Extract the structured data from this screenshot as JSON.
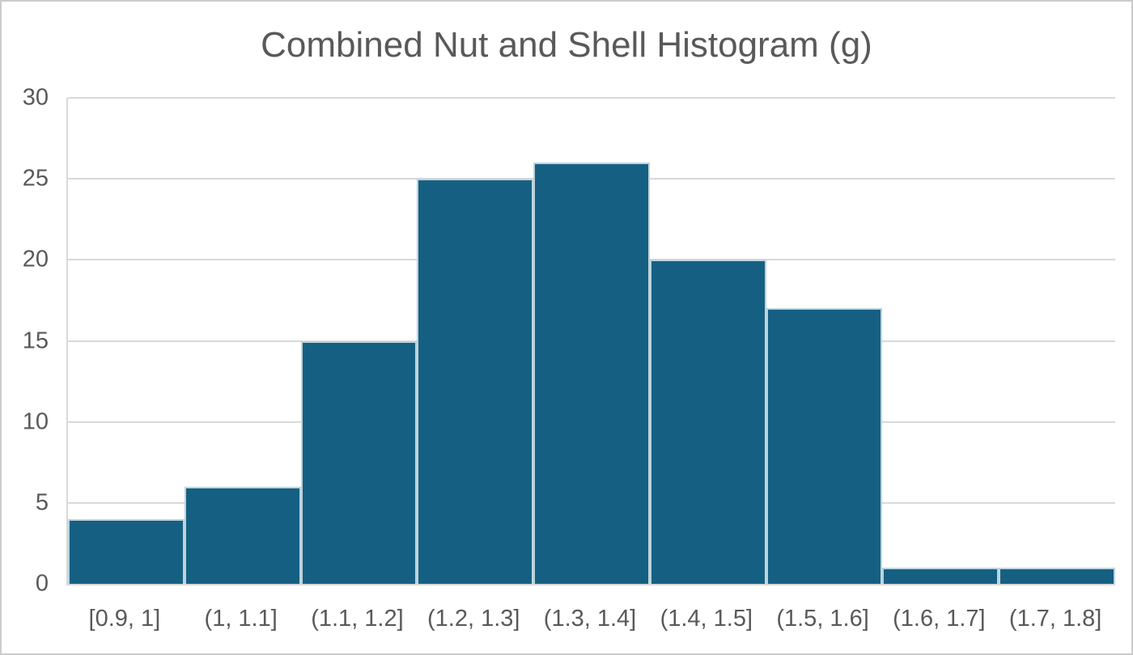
{
  "chart_data": {
    "type": "bar",
    "subtype": "histogram",
    "title": "Combined Nut and Shell Histogram (g)",
    "categories": [
      "[0.9, 1]",
      "(1, 1.1]",
      "(1.1, 1.2]",
      "(1.2, 1.3]",
      "(1.3, 1.4]",
      "(1.4, 1.5]",
      "(1.5, 1.6]",
      "(1.6, 1.7]",
      "(1.7, 1.8]"
    ],
    "values": [
      4,
      6,
      15,
      25,
      26,
      20,
      17,
      1,
      1
    ],
    "xlabel": "",
    "ylabel": "",
    "ylim": [
      0,
      30
    ],
    "yticks": [
      0,
      5,
      10,
      15,
      20,
      25,
      30
    ],
    "grid": true,
    "legend_position": "none",
    "colors": {
      "bar_fill": "#156082",
      "gridline": "#d9d9d9",
      "axis_line": "#d9d9d9",
      "text": "#595959",
      "frame_border": "#cbcbcb",
      "background": "#ffffff"
    }
  }
}
